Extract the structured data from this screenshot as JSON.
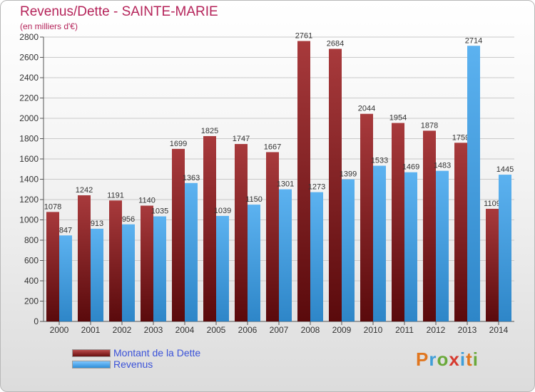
{
  "title": "Revenus/Dette - SAINTE-MARIE",
  "subtitle": "(en milliers d'€)",
  "colors": {
    "dette": "#8e1f22",
    "revenus": "#3f9ee6",
    "title": "#b5245a",
    "legend_text": "#3a52d8"
  },
  "logo": {
    "text": "Proxiti"
  },
  "chart_data": {
    "type": "bar",
    "categories": [
      "2000",
      "2001",
      "2002",
      "2003",
      "2004",
      "2005",
      "2006",
      "2007",
      "2008",
      "2009",
      "2010",
      "2011",
      "2012",
      "2013",
      "2014"
    ],
    "ylim": [
      0,
      2800
    ],
    "yticks": [
      0,
      200,
      400,
      600,
      800,
      1000,
      1200,
      1400,
      1600,
      1800,
      2000,
      2200,
      2400,
      2600,
      2800
    ],
    "grid": true,
    "legend_position": "bottom-left",
    "series": [
      {
        "name": "Montant de la Dette",
        "color": "#8e1f22",
        "values": [
          1078,
          1242,
          1191,
          1140,
          1699,
          1825,
          1747,
          1667,
          2761,
          2684,
          2044,
          1954,
          1878,
          1759,
          1109
        ],
        "labels": [
          "1078",
          "1242",
          "1191",
          "1140",
          "1699",
          "1825",
          "1747",
          "1667",
          "2761",
          "2684",
          "2044",
          "1954",
          "1878",
          "1759",
          "1109"
        ]
      },
      {
        "name": "Revenus",
        "color": "#3f9ee6",
        "values": [
          847,
          913,
          956,
          1035,
          1363,
          1039,
          1150,
          1301,
          1273,
          1399,
          1533,
          1469,
          1483,
          2714,
          1445
        ],
        "labels": [
          "847",
          "913",
          "956",
          "1035",
          "1363",
          "1039",
          "1150",
          "1301",
          "1273",
          "1399",
          "1533",
          "1469",
          "1483",
          "2714",
          "1445"
        ]
      }
    ]
  }
}
